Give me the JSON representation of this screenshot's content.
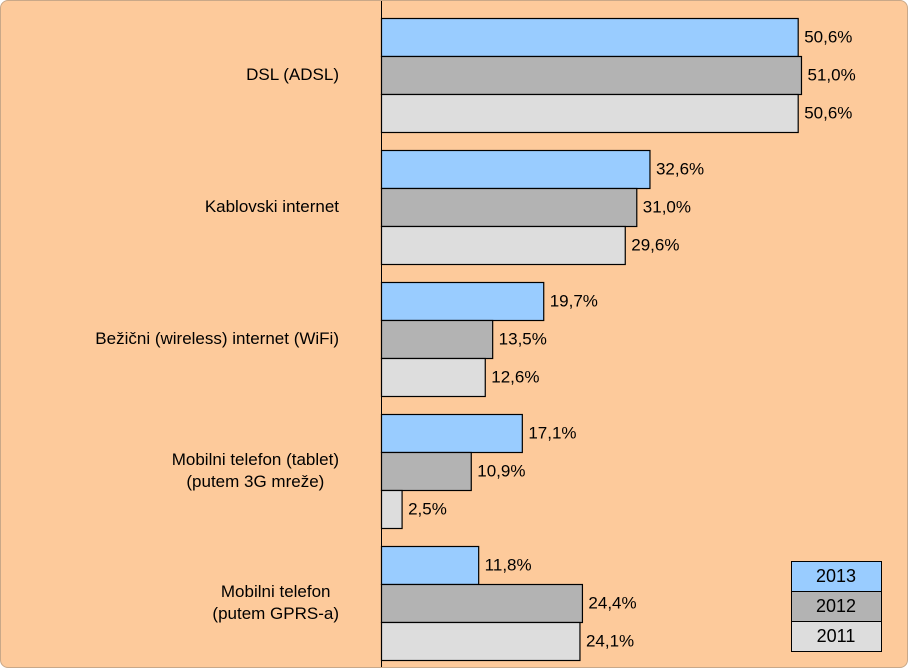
{
  "chart_data": {
    "type": "bar",
    "orientation": "horizontal",
    "categories": [
      "DSL (ADSL)",
      "Kablovski internet",
      "Bežični (wireless) internet (WiFi)",
      "Mobilni telefon (tablet)\n(putem 3G mreže)",
      "Mobilni telefon\n(putem GPRS-a)"
    ],
    "series": [
      {
        "name": "2013",
        "color": "#99ccff",
        "values": [
          50.6,
          32.6,
          19.7,
          17.1,
          11.8
        ],
        "value_labels": [
          "50,6%",
          "32,6%",
          "19,7%",
          "17,1%",
          "11,8%"
        ]
      },
      {
        "name": "2012",
        "color": "#b3b3b3",
        "values": [
          51.0,
          31.0,
          13.5,
          10.9,
          24.4
        ],
        "value_labels": [
          "51,0%",
          "31,0%",
          "13,5%",
          "10,9%",
          "24,4%"
        ]
      },
      {
        "name": "2011",
        "color": "#dddddd",
        "values": [
          50.6,
          29.6,
          12.6,
          2.5,
          24.1
        ],
        "value_labels": [
          "50,6%",
          "29,6%",
          "12,6%",
          "2,5%",
          "24,1%"
        ]
      }
    ],
    "legend": "bottom-right"
  }
}
